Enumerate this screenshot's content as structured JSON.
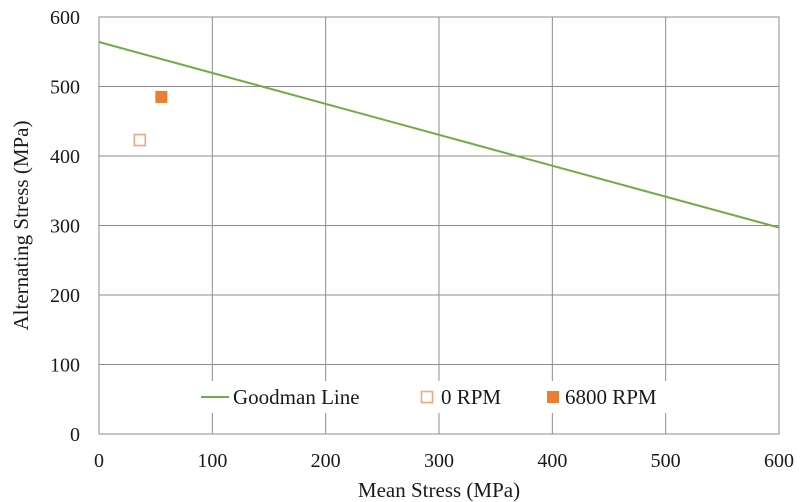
{
  "chart_data": {
    "type": "scatter",
    "title": "",
    "xlabel": "Mean Stress (MPa)",
    "ylabel": "Alternating Stress (MPa)",
    "xlim": [
      0,
      600
    ],
    "ylim": [
      0,
      600
    ],
    "xticks": [
      0,
      100,
      200,
      300,
      400,
      500,
      600
    ],
    "yticks": [
      0,
      100,
      200,
      300,
      400,
      500,
      600
    ],
    "grid": true,
    "legend_position": "bottom",
    "series": [
      {
        "name": "Goodman Line",
        "kind": "line",
        "color": "#70ad47",
        "x": [
          0,
          600
        ],
        "y": [
          564,
          297
        ]
      },
      {
        "name": "0 RPM",
        "kind": "scatter",
        "marker": "hollow-square",
        "color": "#f4a582",
        "x": [
          36
        ],
        "y": [
          423
        ]
      },
      {
        "name": "6800 RPM",
        "kind": "scatter",
        "marker": "filled-square",
        "color": "#ed7d31",
        "x": [
          55
        ],
        "y": [
          485
        ]
      }
    ]
  }
}
